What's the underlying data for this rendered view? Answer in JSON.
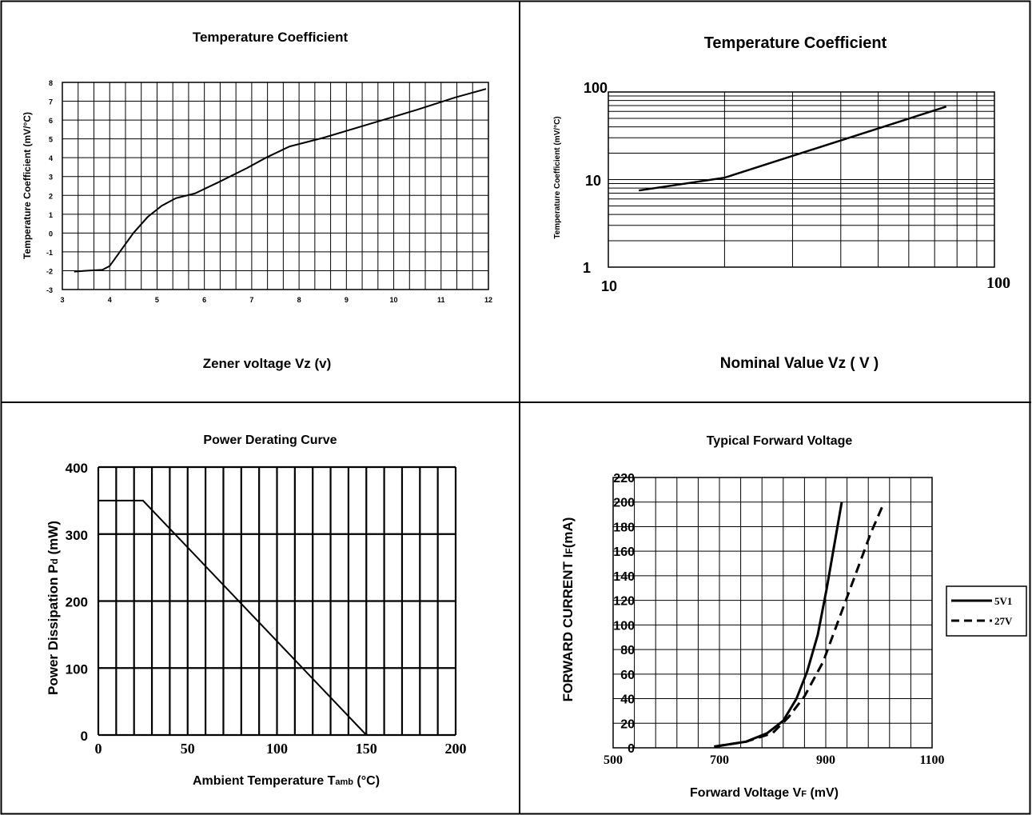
{
  "chart_data": [
    {
      "id": "tc_linear",
      "type": "line",
      "title": "Temperature Coefficient",
      "xlabel": "Zener voltage  Vz (v)",
      "ylabel": "Temperature Coefficient (mV/°C)",
      "xlim": [
        3,
        12
      ],
      "ylim": [
        -3,
        8
      ],
      "x_ticks": [
        "3",
        "4",
        "5",
        "6",
        "7",
        "8",
        "9",
        "10",
        "11",
        "12"
      ],
      "y_ticks": [
        "-3",
        "-2",
        "-1",
        "0",
        "1",
        "2",
        "3",
        "4",
        "5",
        "6",
        "7",
        "8"
      ],
      "grid": true,
      "series": [
        {
          "x": [
            3.25,
            3.5,
            3.85,
            4.0,
            4.2,
            4.5,
            4.8,
            5.1,
            5.4,
            5.8,
            6.3,
            6.9,
            7.3,
            7.8,
            8.5,
            9.5,
            10.5,
            11.3,
            11.95
          ],
          "y": [
            -2.05,
            -2.0,
            -1.95,
            -1.75,
            -1.05,
            0.0,
            0.85,
            1.45,
            1.85,
            2.1,
            2.7,
            3.45,
            4.0,
            4.6,
            5.05,
            5.8,
            6.55,
            7.2,
            7.65
          ]
        }
      ]
    },
    {
      "id": "tc_log",
      "type": "line",
      "title": "Temperature Coefficient",
      "xlabel": "Nominal Value    Vz  ( V )",
      "ylabel": "Temperature Coefficient (mV/°C)",
      "x_scale": "log",
      "y_scale": "log",
      "xlim": [
        10,
        100
      ],
      "ylim": [
        1,
        100
      ],
      "x_ticks": [
        "10",
        "100"
      ],
      "y_ticks": [
        "1",
        "10",
        "100"
      ],
      "grid": true,
      "series": [
        {
          "x": [
            12,
            20,
            75
          ],
          "y": [
            7.5,
            10.5,
            68
          ]
        }
      ]
    },
    {
      "id": "power_derating",
      "type": "line",
      "title": "Power Derating Curve",
      "xlabel_main": "Ambient Temperature  T",
      "xlabel_sub": "amb",
      "xlabel_tail": " (°C)",
      "ylabel_main": "Power Dissipation  P",
      "ylabel_sub": "d",
      "ylabel_tail": " (mW)",
      "xlim": [
        0,
        200
      ],
      "ylim": [
        0,
        400
      ],
      "x_ticks": [
        "0",
        "50",
        "100",
        "150",
        "200"
      ],
      "y_ticks": [
        "0",
        "100",
        "200",
        "300",
        "400"
      ],
      "grid": true,
      "series": [
        {
          "x": [
            0,
            25,
            150
          ],
          "y": [
            350,
            350,
            0
          ]
        }
      ]
    },
    {
      "id": "forward_voltage",
      "type": "line",
      "title": "Typical Forward Voltage",
      "xlabel_main": "Forward Voltage  V",
      "xlabel_sub": "F",
      "xlabel_tail": " (mV)",
      "ylabel_main": "FORWARD CURRENT  I",
      "ylabel_sub": "F",
      "ylabel_tail": "(mA)",
      "xlim": [
        500,
        1100
      ],
      "ylim": [
        0,
        220
      ],
      "x_ticks": [
        "500",
        "700",
        "900",
        "1100"
      ],
      "y_ticks": [
        "0",
        "20",
        "40",
        "60",
        "80",
        "100",
        "120",
        "140",
        "160",
        "180",
        "200",
        "220"
      ],
      "legend_position": "right",
      "grid": true,
      "series": [
        {
          "name": "5V1",
          "style": "solid",
          "x": [
            690,
            750,
            790,
            820,
            845,
            865,
            885,
            902,
            918,
            930
          ],
          "y": [
            1,
            5,
            12,
            22,
            40,
            62,
            92,
            130,
            170,
            200
          ]
        },
        {
          "name": "27V",
          "style": "dashed",
          "x": [
            690,
            750,
            800,
            830,
            860,
            895,
            925,
            955,
            985,
            1010
          ],
          "y": [
            1,
            5,
            12,
            25,
            42,
            70,
            105,
            140,
            175,
            200
          ]
        }
      ]
    }
  ]
}
